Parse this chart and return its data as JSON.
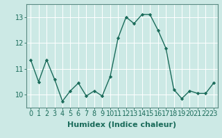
{
  "x": [
    0,
    1,
    2,
    3,
    4,
    5,
    6,
    7,
    8,
    9,
    10,
    11,
    12,
    13,
    14,
    15,
    16,
    17,
    18,
    19,
    20,
    21,
    22,
    23
  ],
  "y": [
    11.35,
    10.5,
    11.35,
    10.6,
    9.75,
    10.15,
    10.45,
    9.95,
    10.15,
    9.95,
    10.7,
    12.2,
    13.0,
    12.75,
    13.1,
    13.1,
    12.5,
    11.8,
    10.2,
    9.85,
    10.15,
    10.05,
    10.05,
    10.45
  ],
  "line_color": "#1a6b5a",
  "marker": "D",
  "marker_size": 2.2,
  "bg_color": "#cce9e5",
  "grid_color": "#ffffff",
  "xlabel": "Humidex (Indice chaleur)",
  "ylim": [
    9.5,
    13.5
  ],
  "xlim": [
    -0.5,
    23.5
  ],
  "yticks": [
    10,
    11,
    12,
    13
  ],
  "xticks": [
    0,
    1,
    2,
    3,
    4,
    5,
    6,
    7,
    8,
    9,
    10,
    11,
    12,
    13,
    14,
    15,
    16,
    17,
    18,
    19,
    20,
    21,
    22,
    23
  ],
  "linewidth": 1.0,
  "tick_fontsize": 7,
  "xlabel_fontsize": 8,
  "spine_color": "#5a8a82"
}
